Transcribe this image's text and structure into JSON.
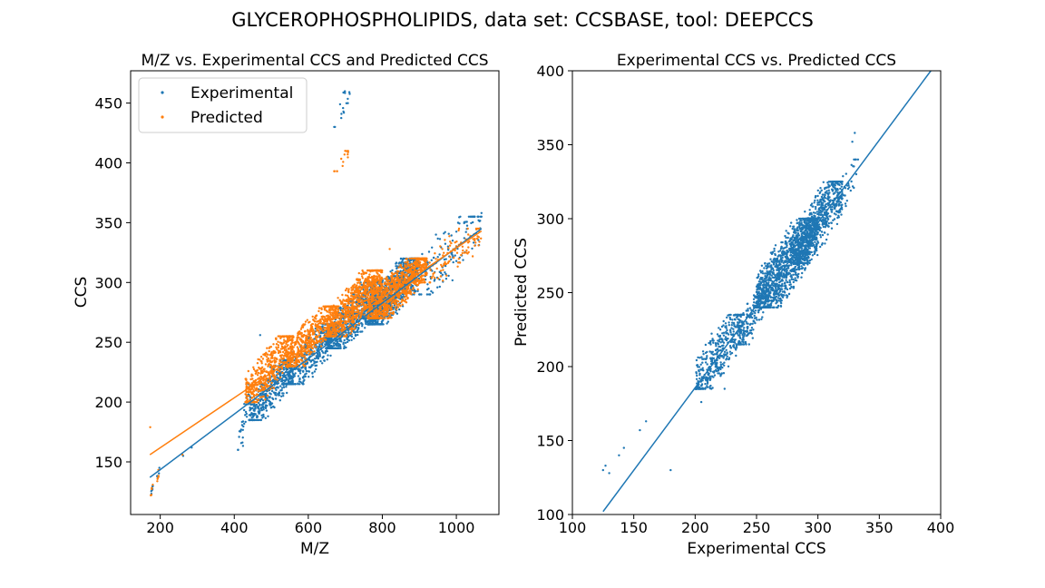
{
  "suptitle": "GLYCEROPHOSPHOLIPIDS, data set: CCSBASE, tool: DEEPCCS",
  "colors": {
    "experimental": "#1f77b4",
    "predicted": "#ff7f0e"
  },
  "chart_data": [
    {
      "type": "scatter",
      "title": "M/Z vs. Experimental CCS and Predicted CCS",
      "xlabel": "M/Z",
      "ylabel": "CCS",
      "xlim": [
        120,
        1115
      ],
      "ylim": [
        106,
        477
      ],
      "xticks": [
        200,
        400,
        600,
        800,
        1000
      ],
      "yticks": [
        150,
        200,
        250,
        300,
        350,
        400,
        450
      ],
      "legend": {
        "position": "top-left",
        "entries": [
          "Experimental",
          "Predicted"
        ]
      },
      "grid": false,
      "series": [
        {
          "name": "Experimental",
          "color": "#1f77b4",
          "trend_line": {
            "x": [
              172,
              1068
            ],
            "y": [
              137,
              345
            ]
          },
          "clusters": [
            {
              "x": [
                175,
                180
              ],
              "y": [
                122,
                130
              ],
              "n": 8
            },
            {
              "x": [
                190,
                198
              ],
              "y": [
                135,
                145
              ],
              "n": 6
            },
            {
              "x": [
                410,
                445
              ],
              "y": [
                160,
                215
              ],
              "n": 40
            },
            {
              "x": [
                440,
                560
              ],
              "y": [
                185,
                235
              ],
              "n": 420
            },
            {
              "x": [
                540,
                680
              ],
              "y": [
                215,
                265
              ],
              "n": 420
            },
            {
              "x": [
                650,
                800
              ],
              "y": [
                245,
                300
              ],
              "n": 700
            },
            {
              "x": [
                760,
                900
              ],
              "y": [
                265,
                320
              ],
              "n": 900
            },
            {
              "x": [
                880,
                1068
              ],
              "y": [
                290,
                355
              ],
              "n": 140
            },
            {
              "x": [
                665,
                712
              ],
              "y": [
                430,
                462
              ],
              "n": 16
            }
          ],
          "points": {
            "x": [
              262,
              285,
              470,
              1068,
              1060,
              990,
              945
            ],
            "y": [
              155,
              162,
              256,
              358,
              352,
              335,
              340
            ]
          }
        },
        {
          "name": "Predicted",
          "color": "#ff7f0e",
          "trend_line": {
            "x": [
              172,
              1068
            ],
            "y": [
              156,
              343
            ]
          },
          "clusters": [
            {
              "x": [
                174,
                180
              ],
              "y": [
                122,
                132
              ],
              "n": 6
            },
            {
              "x": [
                190,
                198
              ],
              "y": [
                130,
                145
              ],
              "n": 6
            },
            {
              "x": [
                430,
                560
              ],
              "y": [
                200,
                255
              ],
              "n": 500
            },
            {
              "x": [
                540,
                680
              ],
              "y": [
                230,
                280
              ],
              "n": 500
            },
            {
              "x": [
                650,
                800
              ],
              "y": [
                255,
                310
              ],
              "n": 800
            },
            {
              "x": [
                760,
                920
              ],
              "y": [
                270,
                320
              ],
              "n": 900
            },
            {
              "x": [
                900,
                1068
              ],
              "y": [
                300,
                345
              ],
              "n": 110
            },
            {
              "x": [
                668,
                710
              ],
              "y": [
                393,
                410
              ],
              "n": 14
            }
          ],
          "points": {
            "x": [
              173,
              260,
              820,
              1060
            ],
            "y": [
              179,
              156,
              328,
              331
            ]
          }
        }
      ]
    },
    {
      "type": "scatter",
      "title": "Experimental CCS vs. Predicted CCS",
      "xlabel": "Experimental CCS",
      "ylabel": "Predicted CCS",
      "xlim": [
        100,
        400
      ],
      "ylim": [
        100,
        400
      ],
      "xticks": [
        100,
        150,
        200,
        250,
        300,
        350,
        400
      ],
      "yticks": [
        100,
        150,
        200,
        250,
        300,
        350,
        400
      ],
      "grid": false,
      "series": [
        {
          "name": "",
          "color": "#1f77b4",
          "trend_line": {
            "x": [
              125,
              392
            ],
            "y": [
              102,
              400
            ]
          },
          "clusters": [
            {
              "x": [
                200,
                240
              ],
              "y": [
                185,
                235
              ],
              "n": 420
            },
            {
              "x": [
                235,
                260
              ],
              "y": [
                215,
                255
              ],
              "n": 200
            },
            {
              "x": [
                250,
                300
              ],
              "y": [
                240,
                300
              ],
              "n": 1200
            },
            {
              "x": [
                280,
                320
              ],
              "y": [
                270,
                325
              ],
              "n": 700
            },
            {
              "x": [
                315,
                333
              ],
              "y": [
                305,
                340
              ],
              "n": 40
            }
          ],
          "points": {
            "x": [
              125,
              127,
              130,
              138,
              142,
              155,
              160,
              180,
              205,
              224,
              330,
              328
            ],
            "y": [
              130,
              133,
              128,
              140,
              145,
              157,
              163,
              130,
              176,
              185,
              358,
              352
            ]
          }
        }
      ]
    }
  ]
}
